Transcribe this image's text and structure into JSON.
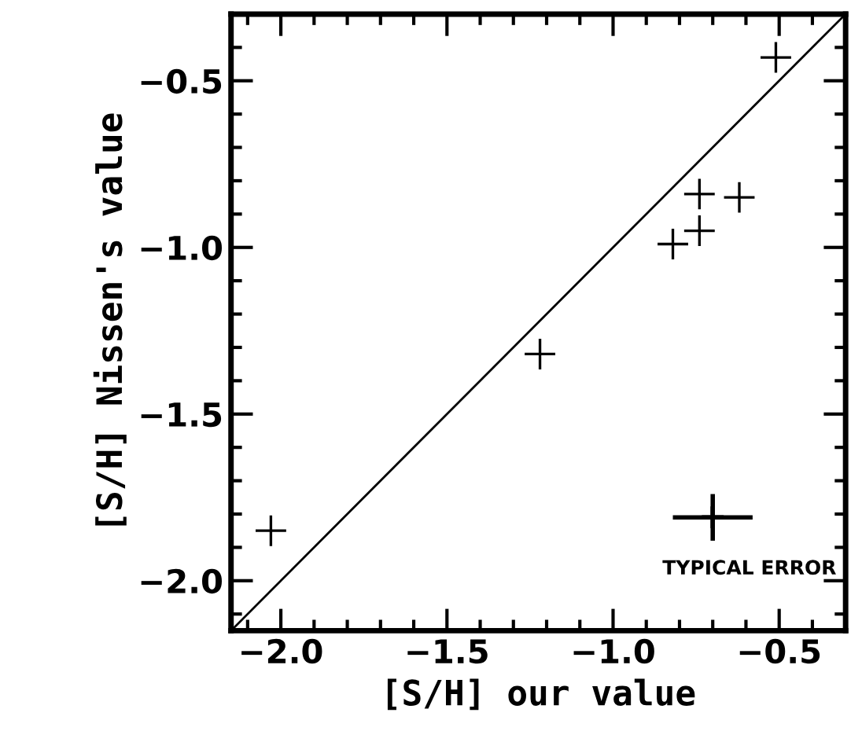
{
  "chart_data": {
    "type": "scatter",
    "xlabel": "[S/H] our value",
    "ylabel": "[S/H] Nissen's value",
    "grid": false,
    "xlim": [
      -2.15,
      -0.3
    ],
    "ylim": [
      -2.15,
      -0.3
    ],
    "xticks": [
      {
        "value": -2.1,
        "label": null
      },
      {
        "value": -2,
        "label": "−2.0"
      },
      {
        "value": -1.9,
        "label": null
      },
      {
        "value": -1.8,
        "label": null
      },
      {
        "value": -1.7,
        "label": null
      },
      {
        "value": -1.6,
        "label": null
      },
      {
        "value": -1.5,
        "label": "−1.5"
      },
      {
        "value": -1.4,
        "label": null
      },
      {
        "value": -1.3,
        "label": null
      },
      {
        "value": -1.2,
        "label": null
      },
      {
        "value": -1.1,
        "label": null
      },
      {
        "value": -1,
        "label": "−1.0"
      },
      {
        "value": -0.9,
        "label": null
      },
      {
        "value": -0.8,
        "label": null
      },
      {
        "value": -0.7,
        "label": null
      },
      {
        "value": -0.6,
        "label": null
      },
      {
        "value": -0.5,
        "label": "−0.5"
      },
      {
        "value": -0.4,
        "label": null
      }
    ],
    "yticks": [
      {
        "value": -2.1,
        "label": null
      },
      {
        "value": -2,
        "label": "−2.0"
      },
      {
        "value": -1.9,
        "label": null
      },
      {
        "value": -1.8,
        "label": null
      },
      {
        "value": -1.7,
        "label": null
      },
      {
        "value": -1.6,
        "label": null
      },
      {
        "value": -1.5,
        "label": "−1.5"
      },
      {
        "value": -1.4,
        "label": null
      },
      {
        "value": -1.3,
        "label": null
      },
      {
        "value": -1.2,
        "label": null
      },
      {
        "value": -1.1,
        "label": null
      },
      {
        "value": -1,
        "label": "−1.0"
      },
      {
        "value": -0.9,
        "label": null
      },
      {
        "value": -0.8,
        "label": null
      },
      {
        "value": -0.7,
        "label": null
      },
      {
        "value": -0.6,
        "label": null
      },
      {
        "value": -0.5,
        "label": "−0.5"
      },
      {
        "value": -0.4,
        "label": null
      }
    ],
    "series": [
      {
        "type": "scatter",
        "marker": "cross",
        "color": "#000000",
        "x": [
          -0.51,
          -0.74,
          -0.62,
          -0.74,
          -0.82,
          -1.22,
          -2.03
        ],
        "values": [
          -0.43,
          -0.84,
          -0.85,
          -0.95,
          -0.99,
          -1.32,
          -1.85
        ]
      },
      {
        "type": "line",
        "marker": "none",
        "color": "#000000",
        "x": [
          -2.15,
          -0.3
        ],
        "values": [
          -2.15,
          -0.3
        ]
      },
      {
        "marker": "cross",
        "color": "#000000",
        "x": [
          -0.7
        ],
        "values": [
          -1.81
        ],
        "errors": [
          0.07
        ],
        "xerrors": [
          0.12
        ]
      }
    ],
    "annotations": [
      "TYPICAL ERROR"
    ]
  }
}
